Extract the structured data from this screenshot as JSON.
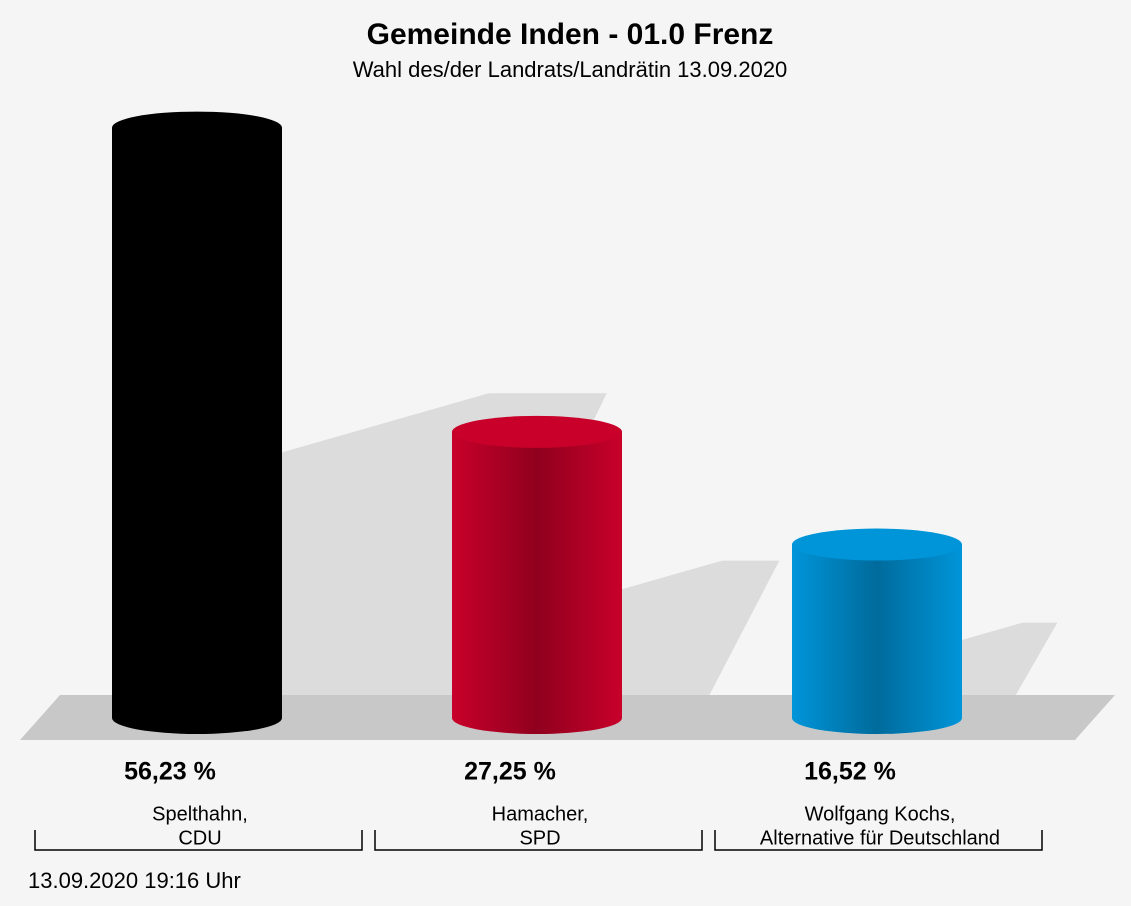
{
  "chart_data": {
    "type": "bar",
    "title": "Gemeinde Inden - 01.0 Frenz",
    "subtitle": "Wahl des/der Landrats/Landrätin 13.09.2020",
    "categories": [
      [
        "Spelthahn,",
        "CDU"
      ],
      [
        "Hamacher,",
        "SPD"
      ],
      [
        "Wolfgang Kochs,",
        "Alternative für Deutschland"
      ]
    ],
    "values": [
      56.23,
      27.25,
      16.52
    ],
    "value_labels": [
      "56,23 %",
      "27,25 %",
      "16,52 %"
    ],
    "colors": [
      "#000000",
      "#c8002a",
      "#0095d9"
    ],
    "footer": "13.09.2020 19:16 Uhr"
  }
}
